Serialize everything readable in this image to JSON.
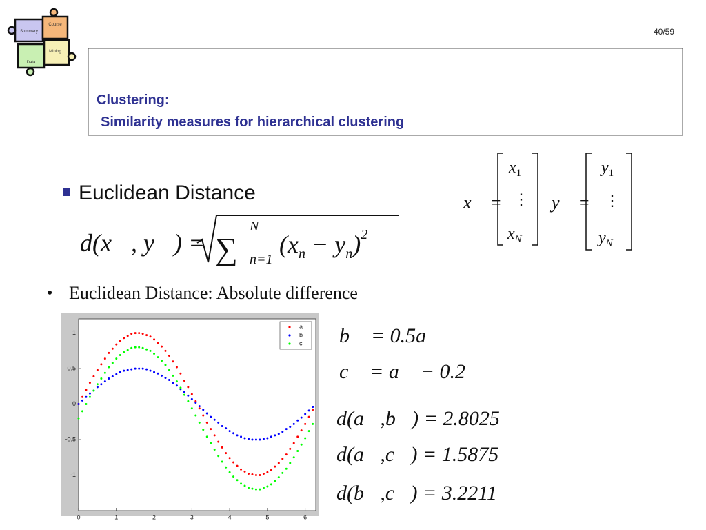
{
  "page_number": "40/59",
  "logo": {
    "pieces": [
      "Course",
      "Summary",
      "Mining",
      "Data"
    ]
  },
  "header": {
    "title_line1": "Clustering:",
    "title_line2": "Similarity measures for hierarchical clustering"
  },
  "section": "Euclidean Distance",
  "formula": {
    "lhs": "d(x⃗, y⃗) =",
    "sigma": "∑",
    "upper": "N",
    "lower": "n=1",
    "open": "(x",
    "sub1": "n",
    "minus": " − y",
    "sub2": "n",
    "close": ")",
    "power": "2"
  },
  "vectors": {
    "x": {
      "lhs": "x⃗ =",
      "first": "x",
      "first_sub": "1",
      "dots": "⋮",
      "last": "x",
      "last_sub": "N"
    },
    "y": {
      "lhs": "y⃗ =",
      "first": "y",
      "first_sub": "1",
      "dots": "⋮",
      "last": "y",
      "last_sub": "N"
    }
  },
  "bullet": {
    "marker": "•",
    "text": "Euclidean Distance: Absolute difference"
  },
  "equations": [
    "b⃗ = 0.5a⃗",
    "c⃗ = a⃗ − 0.2",
    "d(a⃗,b⃗) = 2.8025",
    "d(a⃗,c⃗) = 1.5875",
    "d(b⃗,c⃗) = 3.2211"
  ],
  "chart_data": {
    "type": "scatter",
    "x": [
      0,
      0.1,
      0.2,
      0.3,
      0.4,
      0.5,
      0.6,
      0.7,
      0.8,
      0.9,
      1,
      1.1,
      1.2,
      1.3,
      1.4,
      1.5,
      1.6,
      1.7,
      1.8,
      1.9,
      2,
      2.1,
      2.2,
      2.3,
      2.4,
      2.5,
      2.6,
      2.7,
      2.8,
      2.9,
      3,
      3.1,
      3.2,
      3.3,
      3.4,
      3.5,
      3.6,
      3.7,
      3.8,
      3.9,
      4,
      4.1,
      4.2,
      4.3,
      4.4,
      4.5,
      4.6,
      4.7,
      4.8,
      4.9,
      5,
      5.1,
      5.2,
      5.3,
      5.4,
      5.5,
      5.6,
      5.7,
      5.8,
      5.9,
      6,
      6.1,
      6.2
    ],
    "series": [
      {
        "name": "a",
        "color": "#ff0000",
        "values": [
          0,
          0.1,
          0.2,
          0.3,
          0.39,
          0.48,
          0.56,
          0.64,
          0.72,
          0.78,
          0.84,
          0.89,
          0.93,
          0.96,
          0.99,
          1.0,
          1.0,
          0.99,
          0.97,
          0.95,
          0.91,
          0.86,
          0.81,
          0.75,
          0.68,
          0.6,
          0.52,
          0.43,
          0.33,
          0.24,
          0.14,
          0.04,
          -0.06,
          -0.16,
          -0.26,
          -0.35,
          -0.44,
          -0.53,
          -0.61,
          -0.69,
          -0.76,
          -0.82,
          -0.87,
          -0.92,
          -0.95,
          -0.98,
          -0.99,
          -1.0,
          -1.0,
          -0.98,
          -0.96,
          -0.93,
          -0.88,
          -0.83,
          -0.77,
          -0.71,
          -0.63,
          -0.55,
          -0.46,
          -0.37,
          -0.28,
          -0.18,
          -0.08
        ]
      },
      {
        "name": "b",
        "color": "#0000ff",
        "values": [
          0,
          0.05,
          0.1,
          0.15,
          0.19,
          0.24,
          0.28,
          0.32,
          0.36,
          0.39,
          0.42,
          0.45,
          0.47,
          0.48,
          0.49,
          0.5,
          0.5,
          0.5,
          0.49,
          0.47,
          0.45,
          0.43,
          0.4,
          0.37,
          0.34,
          0.3,
          0.26,
          0.21,
          0.17,
          0.12,
          0.07,
          0.02,
          -0.03,
          -0.08,
          -0.13,
          -0.18,
          -0.22,
          -0.26,
          -0.31,
          -0.34,
          -0.38,
          -0.41,
          -0.44,
          -0.46,
          -0.48,
          -0.49,
          -0.5,
          -0.5,
          -0.5,
          -0.49,
          -0.48,
          -0.46,
          -0.44,
          -0.42,
          -0.39,
          -0.35,
          -0.32,
          -0.28,
          -0.23,
          -0.19,
          -0.14,
          -0.09,
          -0.04
        ]
      },
      {
        "name": "c",
        "color": "#00ff00",
        "values": [
          -0.2,
          -0.1,
          0.0,
          0.1,
          0.19,
          0.28,
          0.36,
          0.44,
          0.52,
          0.58,
          0.64,
          0.69,
          0.73,
          0.76,
          0.79,
          0.8,
          0.8,
          0.79,
          0.77,
          0.75,
          0.71,
          0.66,
          0.61,
          0.55,
          0.48,
          0.4,
          0.32,
          0.23,
          0.13,
          0.04,
          -0.06,
          -0.16,
          -0.26,
          -0.36,
          -0.46,
          -0.55,
          -0.64,
          -0.73,
          -0.81,
          -0.89,
          -0.96,
          -1.02,
          -1.07,
          -1.12,
          -1.15,
          -1.18,
          -1.19,
          -1.2,
          -1.2,
          -1.18,
          -1.16,
          -1.13,
          -1.08,
          -1.03,
          -0.97,
          -0.91,
          -0.83,
          -0.75,
          -0.66,
          -0.57,
          -0.48,
          -0.38,
          -0.28
        ]
      }
    ],
    "xlim": [
      0,
      6.28
    ],
    "xticks": [
      0,
      1,
      2,
      3,
      4,
      5,
      6
    ],
    "ylim": [
      -1.5,
      1.2
    ],
    "yticks": [
      -1,
      -0.5,
      0,
      0.5,
      1
    ],
    "legend": "upper right"
  }
}
